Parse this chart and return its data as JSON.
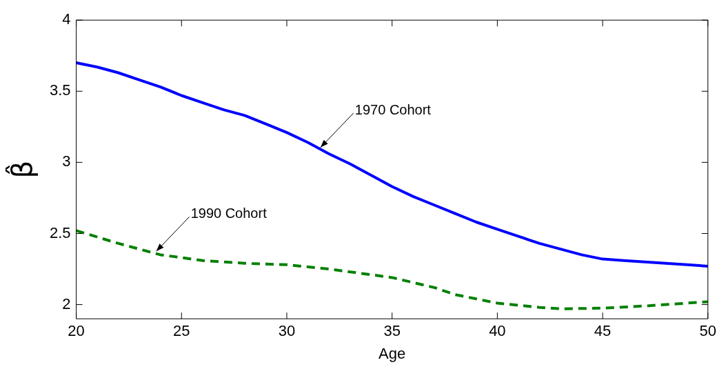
{
  "chart_data": {
    "type": "line",
    "xlabel": "Age",
    "ylabel": "β̂",
    "xlim": [
      20,
      50
    ],
    "ylim": [
      1.9,
      4
    ],
    "xticks": [
      20,
      25,
      30,
      35,
      40,
      45,
      50
    ],
    "yticks": [
      2,
      2.5,
      3,
      3.5,
      4
    ],
    "grid": false,
    "legend": false,
    "marker": "none",
    "series": [
      {
        "color": "#0000ff",
        "line_style": "solid",
        "x": [
          20,
          21,
          22,
          23,
          24,
          25,
          26,
          27,
          28,
          29,
          30,
          31,
          32,
          33,
          34,
          35,
          36,
          37,
          38,
          39,
          40,
          41,
          42,
          43,
          44,
          45,
          46,
          47,
          48,
          49,
          50
        ],
        "values": [
          3.7,
          3.67,
          3.63,
          3.58,
          3.53,
          3.47,
          3.42,
          3.37,
          3.33,
          3.27,
          3.21,
          3.14,
          3.06,
          2.99,
          2.91,
          2.83,
          2.76,
          2.7,
          2.64,
          2.58,
          2.53,
          2.48,
          2.43,
          2.39,
          2.35,
          2.32,
          2.31,
          2.3,
          2.29,
          2.28,
          2.27
        ]
      },
      {
        "color": "#008000",
        "line_style": "dashed",
        "x": [
          20,
          22,
          24,
          26,
          28,
          30,
          32,
          33,
          35,
          37,
          38,
          40,
          42,
          43,
          45,
          47,
          50
        ],
        "values": [
          2.52,
          2.43,
          2.35,
          2.31,
          2.29,
          2.28,
          2.25,
          2.23,
          2.19,
          2.12,
          2.07,
          2.01,
          1.98,
          1.97,
          1.975,
          1.99,
          2.02
        ]
      }
    ],
    "annotations": [
      {
        "text": "1970 Cohort",
        "x": 31.6,
        "y": 3.09
      },
      {
        "text": "1990 Cohort",
        "x": 23.8,
        "y": 2.36
      }
    ]
  }
}
